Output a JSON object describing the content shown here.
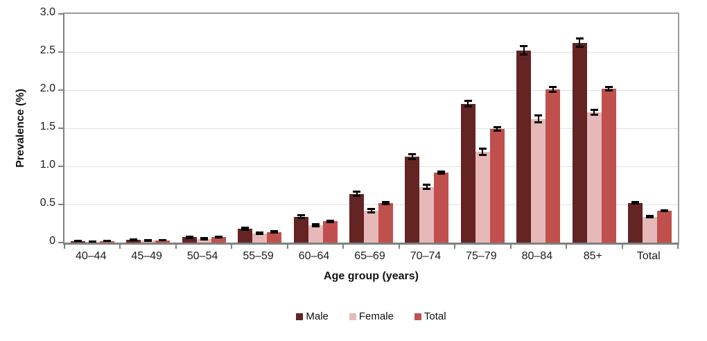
{
  "chart_data": {
    "type": "bar",
    "title": "",
    "xlabel": "Age group (years)",
    "ylabel": "Prevalence (%)",
    "ylim": [
      0,
      3.0
    ],
    "ytick_step": 0.5,
    "ytick_labels": [
      "0",
      "0.5",
      "1.0",
      "1.5",
      "2.0",
      "2.5",
      "3.0"
    ],
    "grid": "horizontal dotted lines every 0.5",
    "legend_position": "bottom-center",
    "categories": [
      "40–44",
      "45–49",
      "50–54",
      "55–59",
      "60–64",
      "65–69",
      "70–74",
      "75–79",
      "80–84",
      "85+",
      "Total"
    ],
    "series": [
      {
        "name": "Male",
        "color": "#632423",
        "values": [
          0.02,
          0.04,
          0.07,
          0.18,
          0.34,
          0.64,
          1.13,
          1.82,
          2.52,
          2.62,
          0.52
        ],
        "errors": [
          0.005,
          0.01,
          0.012,
          0.018,
          0.025,
          0.03,
          0.035,
          0.04,
          0.06,
          0.06,
          0.015
        ]
      },
      {
        "name": "Female",
        "color": "#E6B9B8",
        "values": [
          0.01,
          0.03,
          0.05,
          0.12,
          0.23,
          0.42,
          0.73,
          1.19,
          1.62,
          1.71,
          0.34
        ],
        "errors": [
          0.005,
          0.008,
          0.01,
          0.015,
          0.02,
          0.025,
          0.03,
          0.045,
          0.05,
          0.04,
          0.012
        ]
      },
      {
        "name": "Total",
        "color": "#C0504D",
        "values": [
          0.02,
          0.03,
          0.07,
          0.14,
          0.28,
          0.52,
          0.92,
          1.49,
          2.01,
          2.02,
          0.42
        ],
        "errors": [
          0.004,
          0.006,
          0.008,
          0.012,
          0.015,
          0.018,
          0.02,
          0.025,
          0.035,
          0.03,
          0.01
        ]
      }
    ],
    "error_bar_color": "#000000",
    "axis_color": "#808080",
    "gridline_color": "#C3C3C3"
  }
}
